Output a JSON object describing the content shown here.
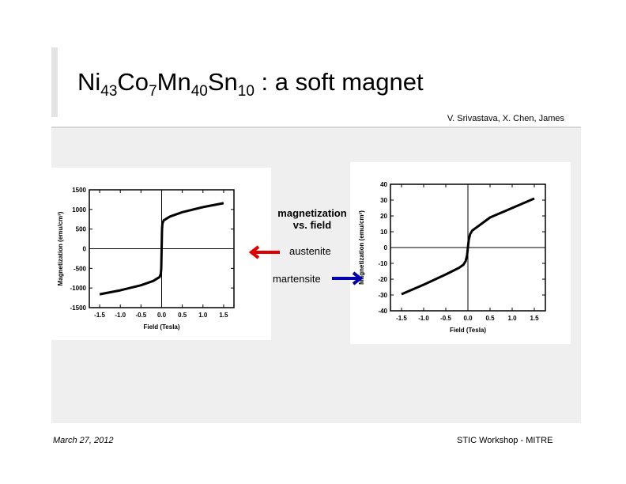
{
  "slide": {
    "title": {
      "parts": [
        "Ni",
        "43",
        "Co",
        "7",
        "Mn",
        "40",
        "Sn",
        "10",
        " : a soft magnet"
      ]
    },
    "authors": "V. Srivastava, X. Chen, James",
    "center_label": {
      "line1": "magnetization",
      "line2": "vs. field"
    },
    "austenite_label": "austenite",
    "martensite_label": "martensite",
    "arrow_colors": {
      "austenite": "#e00000",
      "martensite": "#0000b0"
    },
    "footer_date": "March 27, 2012",
    "footer_event": "STIC Workshop - MITRE"
  },
  "chart_data": [
    {
      "type": "line",
      "xlabel": "Field (Tesla)",
      "ylabel": "Magnetization (emu/cm³)",
      "xlim": [
        -1.75,
        1.75
      ],
      "ylim": [
        -1500,
        1500
      ],
      "xticks": [
        -1.5,
        -1.0,
        -0.5,
        0.0,
        0.5,
        1.0,
        1.5
      ],
      "xtick_labels": [
        "-1.5",
        "-1.0",
        "-0.5",
        "0.0",
        "0.5",
        "1.0",
        "1.5"
      ],
      "yticks": [
        -1500,
        -1000,
        -500,
        0,
        500,
        1000,
        1500
      ],
      "ytick_labels": [
        "-1500",
        "-1000",
        "-500",
        "0",
        "500",
        "1000",
        "1500"
      ],
      "x": [
        -1.5,
        -1.0,
        -0.5,
        -0.2,
        -0.05,
        -0.02,
        -0.01,
        0,
        0.01,
        0.02,
        0.05,
        0.2,
        0.5,
        1.0,
        1.5
      ],
      "y": [
        -1160,
        -1060,
        -930,
        -820,
        -720,
        -640,
        -500,
        0,
        500,
        640,
        720,
        820,
        930,
        1060,
        1160
      ]
    },
    {
      "type": "line",
      "xlabel": "Field (Tesla)",
      "ylabel": "Magnetization (emu/cm³)",
      "xlim": [
        -1.75,
        1.75
      ],
      "ylim": [
        -40,
        40
      ],
      "xticks": [
        -1.5,
        -1.0,
        -0.5,
        0.0,
        0.5,
        1.0,
        1.5
      ],
      "xtick_labels": [
        "-1.5",
        "-1.0",
        "-0.5",
        "0.0",
        "0.5",
        "1.0",
        "1.5"
      ],
      "yticks": [
        -40,
        -30,
        -20,
        -10,
        0,
        10,
        20,
        30,
        40
      ],
      "ytick_labels": [
        "-40",
        "-30",
        "-20",
        "-10",
        "0",
        "10",
        "20",
        "30",
        "40"
      ],
      "x": [
        -1.5,
        -1.0,
        -0.5,
        -0.2,
        -0.1,
        -0.05,
        -0.02,
        0,
        0.02,
        0.05,
        0.1,
        0.2,
        0.5,
        1.0,
        1.5
      ],
      "y": [
        -29.5,
        -23.5,
        -17,
        -12.8,
        -10.8,
        -8.5,
        -5,
        0,
        5,
        8.5,
        10.8,
        12.8,
        19,
        25,
        31
      ]
    }
  ]
}
